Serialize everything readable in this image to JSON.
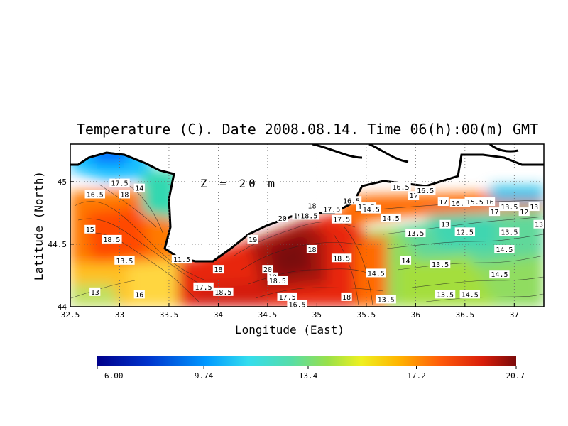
{
  "chart_data": {
    "type": "heatmap",
    "title": "Temperature (C). Date 2008.08.14. Time 06(h):00(m) GMT",
    "annotation": "Z = 20 m",
    "xlabel": "Longitude (East)",
    "ylabel": "Latitude (North)",
    "xlim": [
      32.5,
      37.3
    ],
    "ylim": [
      44.0,
      45.3
    ],
    "x_ticks": [
      "32.5",
      "33",
      "33.5",
      "34",
      "34.5",
      "35",
      "35.5",
      "36",
      "36.5",
      "37"
    ],
    "x_tick_values": [
      32.5,
      33,
      33.5,
      34,
      34.5,
      35,
      35.5,
      36,
      36.5,
      37
    ],
    "y_ticks": [
      "44",
      "44.5",
      "45"
    ],
    "y_tick_values": [
      44.0,
      44.5,
      45.0
    ],
    "grid": true,
    "colorbar": {
      "min": 6.0,
      "max": 20.7,
      "tick_labels": [
        "6.00",
        "9.74",
        "13.4",
        "17.2",
        "20.7"
      ],
      "tick_values": [
        6.0,
        9.74,
        13.4,
        17.2,
        20.7
      ]
    },
    "contour_labels": [
      {
        "lon": 32.7,
        "lat": 44.62,
        "value": "15"
      },
      {
        "lon": 32.75,
        "lat": 44.9,
        "value": "16.5"
      },
      {
        "lon": 33.0,
        "lat": 44.99,
        "value": "17.5"
      },
      {
        "lon": 33.05,
        "lat": 44.9,
        "value": "18"
      },
      {
        "lon": 32.92,
        "lat": 44.54,
        "value": "18.5"
      },
      {
        "lon": 33.2,
        "lat": 44.95,
        "value": "14"
      },
      {
        "lon": 33.05,
        "lat": 44.37,
        "value": "13.5"
      },
      {
        "lon": 32.75,
        "lat": 44.12,
        "value": "13"
      },
      {
        "lon": 33.2,
        "lat": 44.1,
        "value": "16"
      },
      {
        "lon": 33.63,
        "lat": 44.38,
        "value": "11.5"
      },
      {
        "lon": 34.0,
        "lat": 44.3,
        "value": "18"
      },
      {
        "lon": 33.85,
        "lat": 44.16,
        "value": "17.5"
      },
      {
        "lon": 34.05,
        "lat": 44.12,
        "value": "18.5"
      },
      {
        "lon": 34.35,
        "lat": 44.54,
        "value": "19"
      },
      {
        "lon": 34.65,
        "lat": 44.71,
        "value": "20"
      },
      {
        "lon": 34.85,
        "lat": 44.73,
        "value": "19.5"
      },
      {
        "lon": 34.92,
        "lat": 44.73,
        "value": "18.5"
      },
      {
        "lon": 34.95,
        "lat": 44.81,
        "value": "18"
      },
      {
        "lon": 34.5,
        "lat": 44.3,
        "value": "20"
      },
      {
        "lon": 34.55,
        "lat": 44.24,
        "value": "19"
      },
      {
        "lon": 34.6,
        "lat": 44.21,
        "value": "18.5"
      },
      {
        "lon": 34.95,
        "lat": 44.46,
        "value": "18"
      },
      {
        "lon": 35.25,
        "lat": 44.39,
        "value": "18.5"
      },
      {
        "lon": 34.7,
        "lat": 44.08,
        "value": "17.5"
      },
      {
        "lon": 34.8,
        "lat": 44.02,
        "value": "16.5"
      },
      {
        "lon": 35.3,
        "lat": 44.08,
        "value": "18"
      },
      {
        "lon": 35.15,
        "lat": 44.78,
        "value": "17.5"
      },
      {
        "lon": 35.25,
        "lat": 44.7,
        "value": "17.5"
      },
      {
        "lon": 35.35,
        "lat": 44.85,
        "value": "16.5"
      },
      {
        "lon": 35.5,
        "lat": 44.8,
        "value": "15.5"
      },
      {
        "lon": 35.55,
        "lat": 44.78,
        "value": "14.5"
      },
      {
        "lon": 35.75,
        "lat": 44.71,
        "value": "14.5"
      },
      {
        "lon": 35.85,
        "lat": 44.96,
        "value": "16.5"
      },
      {
        "lon": 35.98,
        "lat": 44.89,
        "value": "17"
      },
      {
        "lon": 36.1,
        "lat": 44.93,
        "value": "16.5"
      },
      {
        "lon": 36.28,
        "lat": 44.84,
        "value": "17"
      },
      {
        "lon": 36.45,
        "lat": 44.83,
        "value": "16.5"
      },
      {
        "lon": 36.6,
        "lat": 44.84,
        "value": "15.5"
      },
      {
        "lon": 36.75,
        "lat": 44.84,
        "value": "16"
      },
      {
        "lon": 36.8,
        "lat": 44.76,
        "value": "17"
      },
      {
        "lon": 36.95,
        "lat": 44.8,
        "value": "13.5"
      },
      {
        "lon": 37.1,
        "lat": 44.76,
        "value": "12"
      },
      {
        "lon": 37.2,
        "lat": 44.8,
        "value": "13"
      },
      {
        "lon": 37.25,
        "lat": 44.66,
        "value": "13"
      },
      {
        "lon": 36.3,
        "lat": 44.66,
        "value": "13"
      },
      {
        "lon": 36.5,
        "lat": 44.6,
        "value": "12.5"
      },
      {
        "lon": 36.95,
        "lat": 44.6,
        "value": "13.5"
      },
      {
        "lon": 36.9,
        "lat": 44.46,
        "value": "14.5"
      },
      {
        "lon": 35.9,
        "lat": 44.37,
        "value": "14"
      },
      {
        "lon": 36.25,
        "lat": 44.34,
        "value": "13.5"
      },
      {
        "lon": 35.6,
        "lat": 44.27,
        "value": "14.5"
      },
      {
        "lon": 36.85,
        "lat": 44.26,
        "value": "14.5"
      },
      {
        "lon": 36.3,
        "lat": 44.1,
        "value": "13.5"
      },
      {
        "lon": 36.55,
        "lat": 44.1,
        "value": "14.5"
      },
      {
        "lon": 35.7,
        "lat": 44.06,
        "value": "13.5"
      },
      {
        "lon": 36.0,
        "lat": 44.59,
        "value": "13.5"
      }
    ]
  }
}
